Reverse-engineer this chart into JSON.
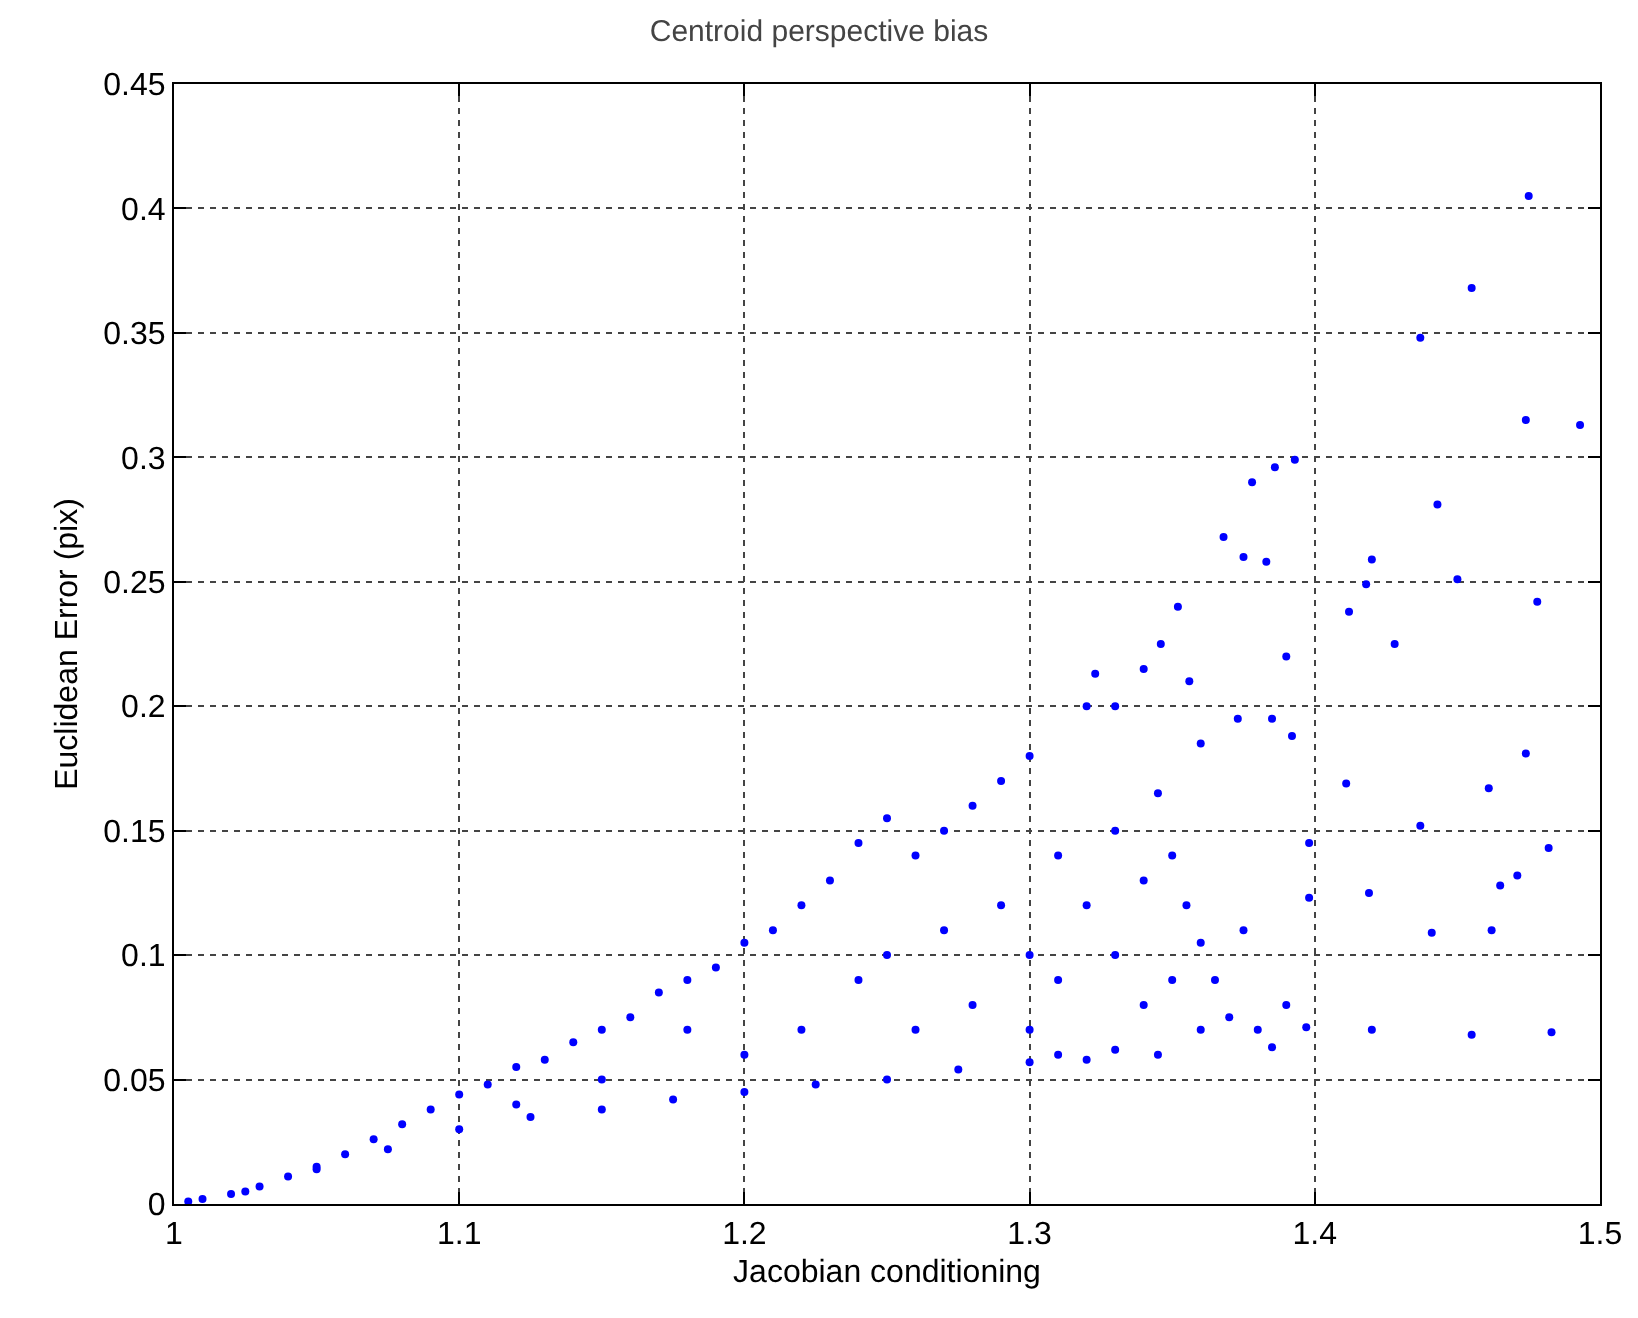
{
  "chart_data": {
    "type": "scatter",
    "title": "Centroid perspective bias",
    "xlabel": "Jacobian conditioning",
    "ylabel": "Euclidean Error (pix)",
    "x": [
      1.475,
      1.455,
      1.437,
      1.474,
      1.493,
      1.443,
      1.45,
      1.478,
      1.42,
      1.418,
      1.412,
      1.428,
      1.437,
      1.474,
      1.461,
      1.482,
      1.471,
      1.465,
      1.441,
      1.462,
      1.419,
      1.398,
      1.398,
      1.397,
      1.42,
      1.455,
      1.483,
      1.411,
      1.393,
      1.386,
      1.378,
      1.368,
      1.375,
      1.383,
      1.39,
      1.385,
      1.392,
      1.373,
      1.36,
      1.352,
      1.346,
      1.356,
      1.33,
      1.32,
      1.323,
      1.34,
      1.345,
      1.35,
      1.355,
      1.36,
      1.365,
      1.37,
      1.38,
      1.385,
      1.39,
      1.375,
      1.345,
      1.33,
      1.32,
      1.31,
      1.33,
      1.31,
      1.3,
      1.29,
      1.28,
      1.27,
      1.26,
      1.25,
      1.24,
      1.23,
      1.22,
      1.21,
      1.2,
      1.19,
      1.18,
      1.17,
      1.16,
      1.15,
      1.14,
      1.13,
      1.12,
      1.11,
      1.1,
      1.09,
      1.08,
      1.07,
      1.06,
      1.05,
      1.04,
      1.03,
      1.02,
      1.01,
      1.005,
      1.1,
      1.15,
      1.2,
      1.25,
      1.3,
      1.05,
      1.28,
      1.25,
      1.22,
      1.2,
      1.15,
      1.3,
      1.29,
      1.27,
      1.24,
      1.18,
      1.12,
      1.26,
      1.3,
      1.31,
      1.32,
      1.33,
      1.34,
      1.35,
      1.36,
      1.34,
      1.125,
      1.175,
      1.225,
      1.275,
      1.075,
      1.025
    ],
    "values": [
      0.405,
      0.368,
      0.348,
      0.315,
      0.313,
      0.281,
      0.251,
      0.242,
      0.259,
      0.249,
      0.238,
      0.225,
      0.152,
      0.181,
      0.167,
      0.143,
      0.132,
      0.128,
      0.109,
      0.11,
      0.125,
      0.145,
      0.123,
      0.071,
      0.07,
      0.068,
      0.069,
      0.169,
      0.299,
      0.296,
      0.29,
      0.268,
      0.26,
      0.258,
      0.22,
      0.195,
      0.188,
      0.195,
      0.185,
      0.24,
      0.225,
      0.21,
      0.2,
      0.2,
      0.213,
      0.215,
      0.165,
      0.14,
      0.12,
      0.105,
      0.09,
      0.075,
      0.07,
      0.063,
      0.08,
      0.11,
      0.06,
      0.062,
      0.058,
      0.06,
      0.1,
      0.14,
      0.18,
      0.17,
      0.16,
      0.15,
      0.14,
      0.155,
      0.145,
      0.13,
      0.12,
      0.11,
      0.105,
      0.095,
      0.09,
      0.085,
      0.075,
      0.07,
      0.065,
      0.058,
      0.055,
      0.048,
      0.044,
      0.038,
      0.032,
      0.026,
      0.02,
      0.015,
      0.011,
      0.007,
      0.004,
      0.002,
      0.001,
      0.03,
      0.038,
      0.045,
      0.05,
      0.057,
      0.014,
      0.08,
      0.1,
      0.07,
      0.06,
      0.05,
      0.1,
      0.12,
      0.11,
      0.09,
      0.07,
      0.04,
      0.07,
      0.07,
      0.09,
      0.12,
      0.15,
      0.13,
      0.09,
      0.07,
      0.08,
      0.035,
      0.042,
      0.048,
      0.054,
      0.022,
      0.005
    ],
    "color": "#0000ff",
    "marker": "circle",
    "grid": true,
    "xlim": [
      1,
      1.5
    ],
    "xticks": [
      1,
      1.1,
      1.2,
      1.3,
      1.4,
      1.5
    ],
    "ylim": [
      0,
      0.45
    ],
    "yticks": [
      0,
      0.05,
      0.1,
      0.15,
      0.2,
      0.25,
      0.3,
      0.35,
      0.4,
      0.45
    ]
  }
}
